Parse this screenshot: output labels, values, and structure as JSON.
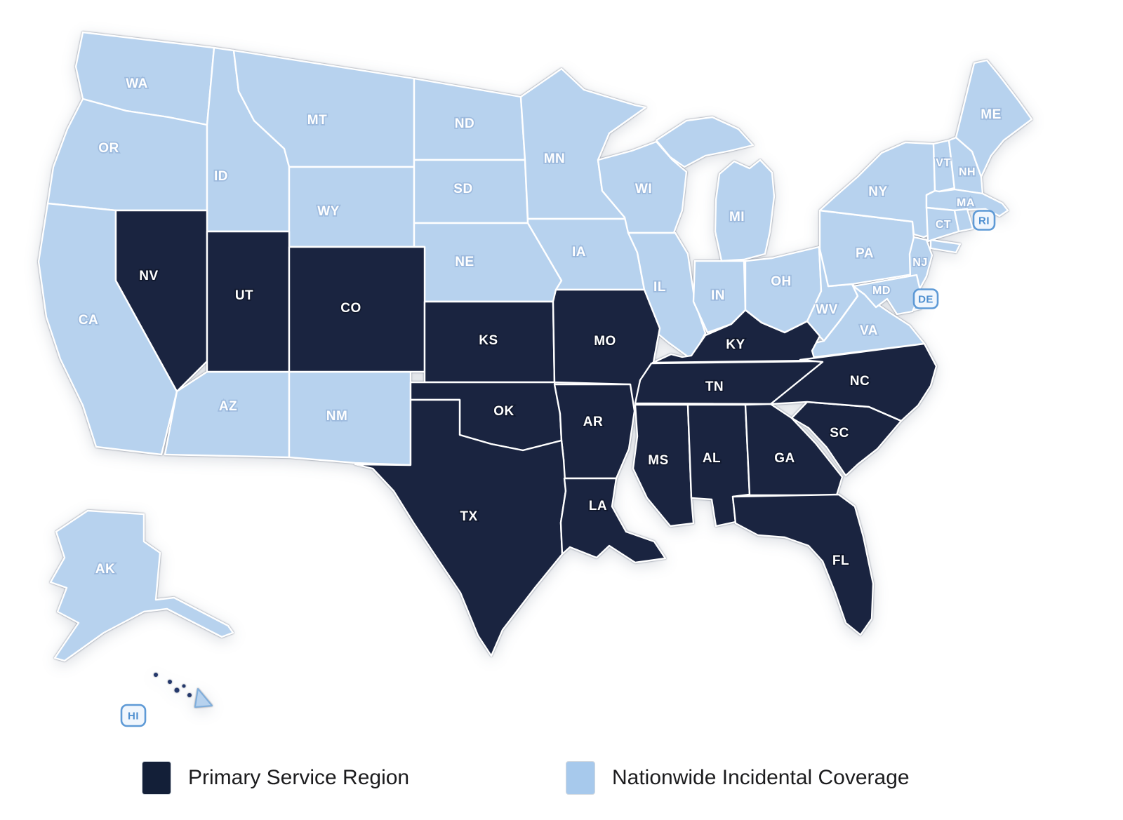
{
  "map": {
    "name": "US service coverage map",
    "regions": {
      "primary": {
        "label": "Primary Service Region",
        "color": "#1A2440"
      },
      "incidental": {
        "label": "Nationwide Incidental Coverage",
        "color": "#B7D2EE"
      }
    },
    "states": [
      {
        "abbr": "WA",
        "category": "incidental"
      },
      {
        "abbr": "OR",
        "category": "incidental"
      },
      {
        "abbr": "CA",
        "category": "incidental"
      },
      {
        "abbr": "ID",
        "category": "incidental"
      },
      {
        "abbr": "MT",
        "category": "incidental"
      },
      {
        "abbr": "WY",
        "category": "incidental"
      },
      {
        "abbr": "AZ",
        "category": "incidental"
      },
      {
        "abbr": "NM",
        "category": "incidental"
      },
      {
        "abbr": "ND",
        "category": "incidental"
      },
      {
        "abbr": "SD",
        "category": "incidental"
      },
      {
        "abbr": "NE",
        "category": "incidental"
      },
      {
        "abbr": "MN",
        "category": "incidental"
      },
      {
        "abbr": "IA",
        "category": "incidental"
      },
      {
        "abbr": "WI",
        "category": "incidental"
      },
      {
        "abbr": "IL",
        "category": "incidental"
      },
      {
        "abbr": "IN",
        "category": "incidental"
      },
      {
        "abbr": "MI",
        "category": "incidental"
      },
      {
        "abbr": "OH",
        "category": "incidental"
      },
      {
        "abbr": "WV",
        "category": "incidental"
      },
      {
        "abbr": "VA",
        "category": "incidental"
      },
      {
        "abbr": "PA",
        "category": "incidental"
      },
      {
        "abbr": "NY",
        "category": "incidental"
      },
      {
        "abbr": "VT",
        "category": "incidental"
      },
      {
        "abbr": "NH",
        "category": "incidental"
      },
      {
        "abbr": "ME",
        "category": "incidental"
      },
      {
        "abbr": "MA",
        "category": "incidental"
      },
      {
        "abbr": "CT",
        "category": "incidental"
      },
      {
        "abbr": "RI",
        "category": "incidental"
      },
      {
        "abbr": "NJ",
        "category": "incidental"
      },
      {
        "abbr": "DE",
        "category": "incidental"
      },
      {
        "abbr": "MD",
        "category": "incidental"
      },
      {
        "abbr": "AK",
        "category": "incidental"
      },
      {
        "abbr": "HI",
        "category": "incidental"
      },
      {
        "abbr": "NV",
        "category": "primary"
      },
      {
        "abbr": "UT",
        "category": "primary"
      },
      {
        "abbr": "CO",
        "category": "primary"
      },
      {
        "abbr": "KS",
        "category": "primary"
      },
      {
        "abbr": "MO",
        "category": "primary"
      },
      {
        "abbr": "OK",
        "category": "primary"
      },
      {
        "abbr": "AR",
        "category": "primary"
      },
      {
        "abbr": "TX",
        "category": "primary"
      },
      {
        "abbr": "LA",
        "category": "primary"
      },
      {
        "abbr": "MS",
        "category": "primary"
      },
      {
        "abbr": "AL",
        "category": "primary"
      },
      {
        "abbr": "TN",
        "category": "primary"
      },
      {
        "abbr": "KY",
        "category": "primary"
      },
      {
        "abbr": "GA",
        "category": "primary"
      },
      {
        "abbr": "FL",
        "category": "primary"
      },
      {
        "abbr": "SC",
        "category": "primary"
      },
      {
        "abbr": "NC",
        "category": "primary"
      }
    ]
  },
  "legend": {
    "items": [
      {
        "label": "Primary Service Region",
        "swatch_color": "#131F38",
        "category": "primary"
      },
      {
        "label": "Nationwide Incidental Coverage",
        "swatch_color": "#A7C9EC",
        "category": "incidental"
      }
    ]
  }
}
